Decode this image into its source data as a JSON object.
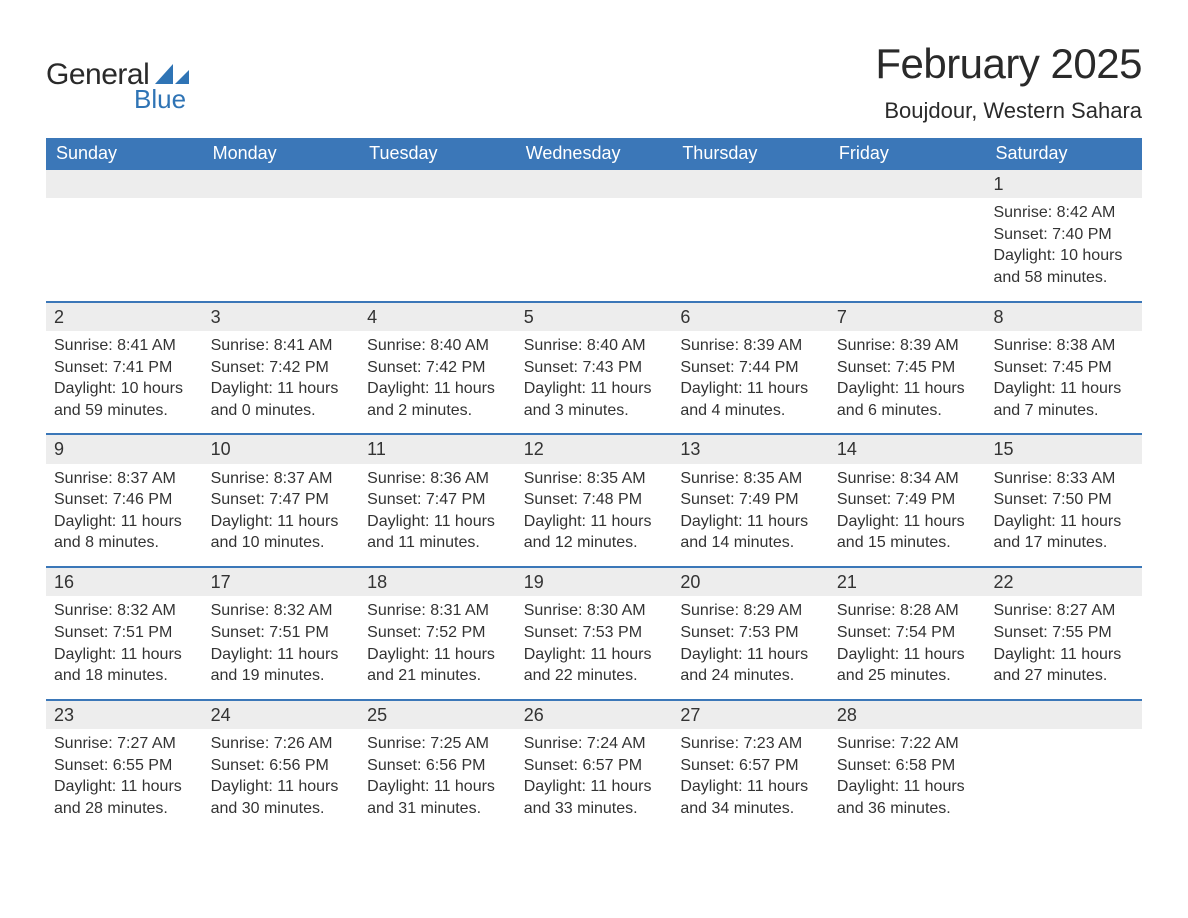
{
  "brand": {
    "general": "General",
    "blue": "Blue"
  },
  "title": "February 2025",
  "location": "Boujdour, Western Sahara",
  "colors": {
    "header_bg": "#3b77b8",
    "header_text": "#ffffff",
    "daynum_bg": "#ededed",
    "text": "#333333",
    "rule": "#3b77b8",
    "logo_blue": "#2f74b5"
  },
  "typography": {
    "title_fontsize": 42,
    "location_fontsize": 22,
    "weekday_fontsize": 18,
    "body_fontsize": 16
  },
  "weekdays": [
    "Sunday",
    "Monday",
    "Tuesday",
    "Wednesday",
    "Thursday",
    "Friday",
    "Saturday"
  ],
  "labels": {
    "sunrise": "Sunrise:",
    "sunset": "Sunset:",
    "daylight": "Daylight:"
  },
  "weeks": [
    [
      null,
      null,
      null,
      null,
      null,
      null,
      {
        "d": "1",
        "sr": "8:42 AM",
        "ss": "7:40 PM",
        "dl": "10 hours and 58 minutes."
      }
    ],
    [
      {
        "d": "2",
        "sr": "8:41 AM",
        "ss": "7:41 PM",
        "dl": "10 hours and 59 minutes."
      },
      {
        "d": "3",
        "sr": "8:41 AM",
        "ss": "7:42 PM",
        "dl": "11 hours and 0 minutes."
      },
      {
        "d": "4",
        "sr": "8:40 AM",
        "ss": "7:42 PM",
        "dl": "11 hours and 2 minutes."
      },
      {
        "d": "5",
        "sr": "8:40 AM",
        "ss": "7:43 PM",
        "dl": "11 hours and 3 minutes."
      },
      {
        "d": "6",
        "sr": "8:39 AM",
        "ss": "7:44 PM",
        "dl": "11 hours and 4 minutes."
      },
      {
        "d": "7",
        "sr": "8:39 AM",
        "ss": "7:45 PM",
        "dl": "11 hours and 6 minutes."
      },
      {
        "d": "8",
        "sr": "8:38 AM",
        "ss": "7:45 PM",
        "dl": "11 hours and 7 minutes."
      }
    ],
    [
      {
        "d": "9",
        "sr": "8:37 AM",
        "ss": "7:46 PM",
        "dl": "11 hours and 8 minutes."
      },
      {
        "d": "10",
        "sr": "8:37 AM",
        "ss": "7:47 PM",
        "dl": "11 hours and 10 minutes."
      },
      {
        "d": "11",
        "sr": "8:36 AM",
        "ss": "7:47 PM",
        "dl": "11 hours and 11 minutes."
      },
      {
        "d": "12",
        "sr": "8:35 AM",
        "ss": "7:48 PM",
        "dl": "11 hours and 12 minutes."
      },
      {
        "d": "13",
        "sr": "8:35 AM",
        "ss": "7:49 PM",
        "dl": "11 hours and 14 minutes."
      },
      {
        "d": "14",
        "sr": "8:34 AM",
        "ss": "7:49 PM",
        "dl": "11 hours and 15 minutes."
      },
      {
        "d": "15",
        "sr": "8:33 AM",
        "ss": "7:50 PM",
        "dl": "11 hours and 17 minutes."
      }
    ],
    [
      {
        "d": "16",
        "sr": "8:32 AM",
        "ss": "7:51 PM",
        "dl": "11 hours and 18 minutes."
      },
      {
        "d": "17",
        "sr": "8:32 AM",
        "ss": "7:51 PM",
        "dl": "11 hours and 19 minutes."
      },
      {
        "d": "18",
        "sr": "8:31 AM",
        "ss": "7:52 PM",
        "dl": "11 hours and 21 minutes."
      },
      {
        "d": "19",
        "sr": "8:30 AM",
        "ss": "7:53 PM",
        "dl": "11 hours and 22 minutes."
      },
      {
        "d": "20",
        "sr": "8:29 AM",
        "ss": "7:53 PM",
        "dl": "11 hours and 24 minutes."
      },
      {
        "d": "21",
        "sr": "8:28 AM",
        "ss": "7:54 PM",
        "dl": "11 hours and 25 minutes."
      },
      {
        "d": "22",
        "sr": "8:27 AM",
        "ss": "7:55 PM",
        "dl": "11 hours and 27 minutes."
      }
    ],
    [
      {
        "d": "23",
        "sr": "7:27 AM",
        "ss": "6:55 PM",
        "dl": "11 hours and 28 minutes."
      },
      {
        "d": "24",
        "sr": "7:26 AM",
        "ss": "6:56 PM",
        "dl": "11 hours and 30 minutes."
      },
      {
        "d": "25",
        "sr": "7:25 AM",
        "ss": "6:56 PM",
        "dl": "11 hours and 31 minutes."
      },
      {
        "d": "26",
        "sr": "7:24 AM",
        "ss": "6:57 PM",
        "dl": "11 hours and 33 minutes."
      },
      {
        "d": "27",
        "sr": "7:23 AM",
        "ss": "6:57 PM",
        "dl": "11 hours and 34 minutes."
      },
      {
        "d": "28",
        "sr": "7:22 AM",
        "ss": "6:58 PM",
        "dl": "11 hours and 36 minutes."
      },
      null
    ]
  ]
}
